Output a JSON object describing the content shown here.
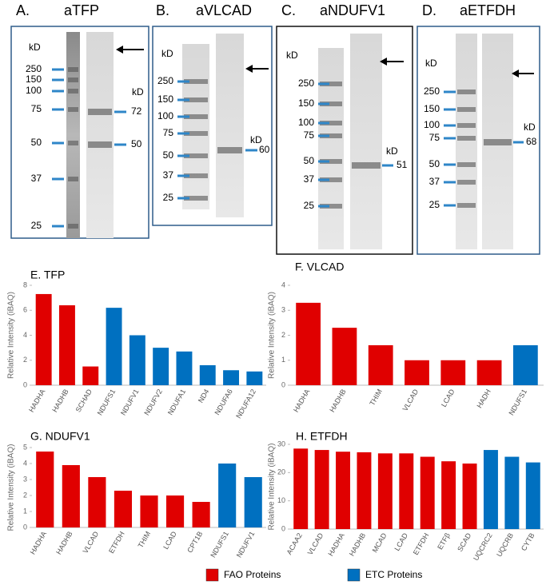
{
  "blots": [
    {
      "label": "A.",
      "title": "aTFP",
      "unit": "kD",
      "markers": [
        250,
        150,
        100,
        75,
        50,
        37,
        25
      ],
      "bands": [
        72,
        50
      ]
    },
    {
      "label": "B.",
      "title": "aVLCAD",
      "unit": "kD",
      "markers": [
        250,
        150,
        100,
        75,
        50,
        37,
        25
      ],
      "bands": [
        60
      ]
    },
    {
      "label": "C.",
      "title": "aNDUFV1",
      "unit": "kD",
      "markers": [
        250,
        150,
        100,
        75,
        50,
        37,
        25
      ],
      "bands": [
        51
      ]
    },
    {
      "label": "D.",
      "title": "aETFDH",
      "unit": "kD",
      "markers": [
        250,
        150,
        100,
        75,
        50,
        37,
        25
      ],
      "bands": [
        68
      ]
    }
  ],
  "legend": [
    {
      "name": "FAO Proteins",
      "color": "#e00000"
    },
    {
      "name": "ETC Proteins",
      "color": "#0070c0"
    }
  ],
  "chart_data": [
    {
      "type": "bar",
      "title": "E. TFP",
      "ylabel": "Relative Intensity (iBAQ)",
      "categories": [
        "HADHA",
        "HADHB",
        "SCHAD",
        "NDUFS1",
        "NDUFV1",
        "NDUFV2",
        "NDUFA1",
        "ND4",
        "NDUFA6",
        "NDUFA12"
      ],
      "values": [
        7.3,
        6.4,
        1.5,
        6.2,
        4.0,
        3.0,
        2.7,
        1.6,
        1.2,
        1.1
      ],
      "colors": [
        "#e00000",
        "#e00000",
        "#e00000",
        "#0070c0",
        "#0070c0",
        "#0070c0",
        "#0070c0",
        "#0070c0",
        "#0070c0",
        "#0070c0"
      ],
      "ylim": [
        0,
        8
      ],
      "yticks": [
        0,
        2,
        4,
        6,
        8
      ]
    },
    {
      "type": "bar",
      "title": "F. VLCAD",
      "ylabel": "Relative Intensity (iBAQ)",
      "categories": [
        "HADHA",
        "HADHB",
        "THIM",
        "VLCAD",
        "LCAD",
        "HADH",
        "NDUFS1"
      ],
      "values": [
        3.3,
        2.3,
        1.6,
        1.0,
        1.0,
        1.0,
        1.6
      ],
      "colors": [
        "#e00000",
        "#e00000",
        "#e00000",
        "#e00000",
        "#e00000",
        "#e00000",
        "#0070c0"
      ],
      "ylim": [
        0,
        4
      ],
      "yticks": [
        0,
        1,
        2,
        3,
        4
      ]
    },
    {
      "type": "bar",
      "title": "G. NDUFV1",
      "ylabel": "Relative Intensity (iBAQ)",
      "categories": [
        "HADHA",
        "HADHB",
        "VLCAD",
        "ETFDH",
        "THIM",
        "LCAD",
        "CPT1B",
        "NDUFS1",
        "NDUFV1"
      ],
      "values": [
        4.75,
        3.9,
        3.15,
        2.3,
        2.0,
        2.0,
        1.6,
        4.0,
        3.15
      ],
      "colors": [
        "#e00000",
        "#e00000",
        "#e00000",
        "#e00000",
        "#e00000",
        "#e00000",
        "#e00000",
        "#0070c0",
        "#0070c0"
      ],
      "ylim": [
        0,
        5
      ],
      "yticks": [
        0,
        1,
        2,
        3,
        4,
        5
      ]
    },
    {
      "type": "bar",
      "title": "H. ETFDH",
      "ylabel": "Relative Intensity (iBAQ)",
      "categories": [
        "ACAA2",
        "VLCAD",
        "HADHA",
        "HADHB",
        "MCAD",
        "LCAD",
        "ETFDH",
        "ETFβ",
        "SCAD",
        "UQCRC2",
        "UQCRB",
        "CYTB"
      ],
      "values": [
        28.5,
        28.0,
        27.4,
        27.2,
        26.8,
        26.8,
        25.6,
        24.0,
        23.2,
        28.0,
        25.6,
        23.6
      ],
      "colors": [
        "#e00000",
        "#e00000",
        "#e00000",
        "#e00000",
        "#e00000",
        "#e00000",
        "#e00000",
        "#e00000",
        "#e00000",
        "#0070c0",
        "#0070c0",
        "#0070c0"
      ],
      "ylim": [
        0,
        30
      ],
      "yticks": [
        0,
        10,
        20,
        30
      ]
    }
  ]
}
